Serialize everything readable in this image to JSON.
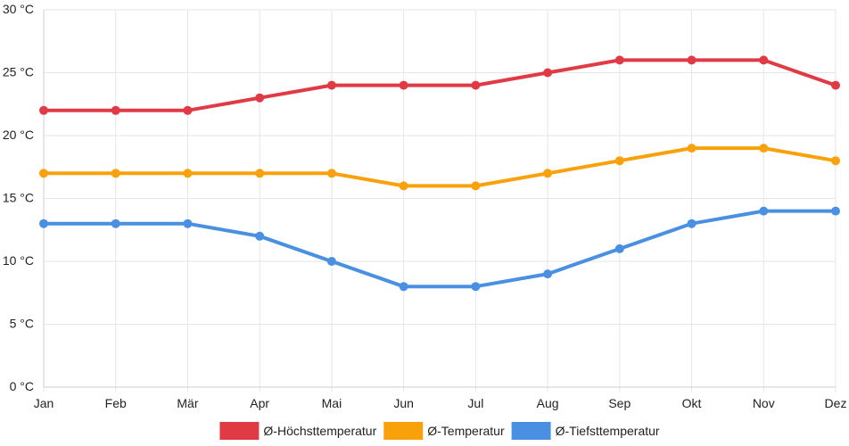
{
  "chart_data": {
    "type": "line",
    "categories": [
      "Jan",
      "Feb",
      "Mär",
      "Apr",
      "Mai",
      "Jun",
      "Jul",
      "Aug",
      "Sep",
      "Okt",
      "Nov",
      "Dez"
    ],
    "y_unit": "°C",
    "ylim": [
      0,
      30
    ],
    "y_ticks": [
      0,
      5,
      10,
      15,
      20,
      25,
      30
    ],
    "y_tick_labels": [
      "0 °C",
      "5 °C",
      "10 °C",
      "15 °C",
      "20 °C",
      "25 °C",
      "30 °C"
    ],
    "grid": true,
    "legend_position": "bottom",
    "series": [
      {
        "name": "Ø-Höchsttemperatur",
        "color": "#e03a45",
        "values": [
          22,
          22,
          22,
          23,
          24,
          24,
          24,
          25,
          26,
          26,
          26,
          24
        ]
      },
      {
        "name": "Ø-Temperatur",
        "color": "#f9a10b",
        "values": [
          17,
          17,
          17,
          17,
          17,
          16,
          16,
          17,
          18,
          19,
          19,
          18
        ]
      },
      {
        "name": "Ø-Tiefsttemperatur",
        "color": "#4a90e2",
        "values": [
          13,
          13,
          13,
          12,
          10,
          8,
          8,
          9,
          11,
          13,
          14,
          14
        ]
      }
    ]
  }
}
